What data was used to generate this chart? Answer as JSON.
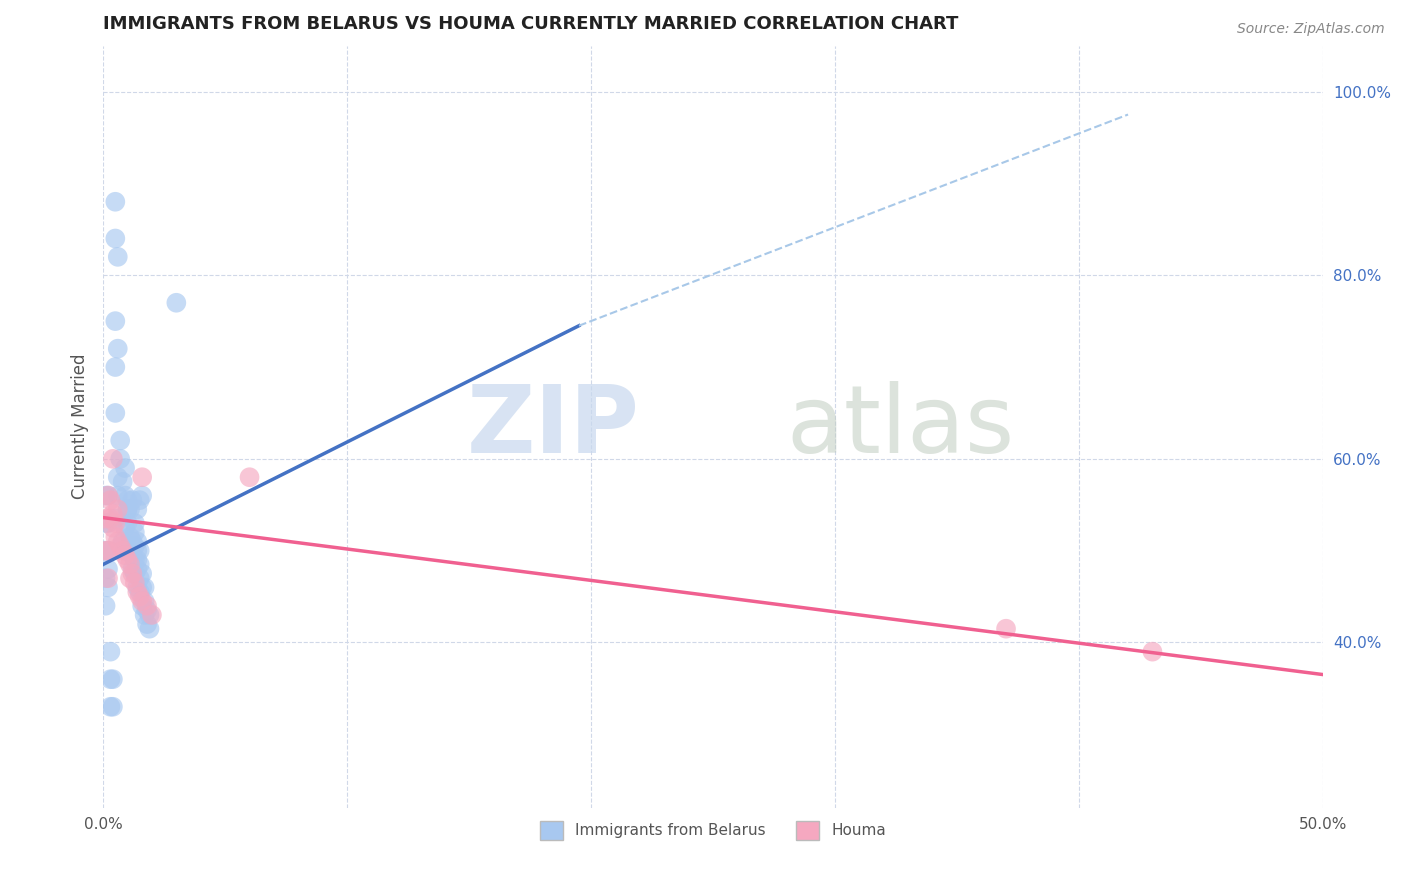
{
  "title": "IMMIGRANTS FROM BELARUS VS HOUMA CURRENTLY MARRIED CORRELATION CHART",
  "source_text": "Source: ZipAtlas.com",
  "ylabel": "Currently Married",
  "xlim": [
    0.0,
    0.5
  ],
  "ylim": [
    0.22,
    1.05
  ],
  "yticks_right": [
    0.4,
    0.6,
    0.8,
    1.0
  ],
  "yticklabels_right": [
    "40.0%",
    "60.0%",
    "80.0%",
    "100.0%"
  ],
  "color_blue": "#a8c8f0",
  "color_pink": "#f5a8c0",
  "line_blue": "#4472c4",
  "line_pink": "#f06090",
  "trend_dash_color": "#a8c8e8",
  "background_color": "#ffffff",
  "grid_color": "#d0d8e8",
  "blue_scatter": [
    [
      0.005,
      0.535
    ],
    [
      0.006,
      0.56
    ],
    [
      0.008,
      0.51
    ],
    [
      0.009,
      0.5
    ],
    [
      0.009,
      0.525
    ],
    [
      0.01,
      0.545
    ],
    [
      0.01,
      0.555
    ],
    [
      0.011,
      0.5
    ],
    [
      0.011,
      0.515
    ],
    [
      0.012,
      0.48
    ],
    [
      0.012,
      0.495
    ],
    [
      0.012,
      0.51
    ],
    [
      0.013,
      0.475
    ],
    [
      0.013,
      0.49
    ],
    [
      0.013,
      0.505
    ],
    [
      0.013,
      0.52
    ],
    [
      0.014,
      0.46
    ],
    [
      0.014,
      0.48
    ],
    [
      0.014,
      0.49
    ],
    [
      0.014,
      0.5
    ],
    [
      0.014,
      0.51
    ],
    [
      0.015,
      0.455
    ],
    [
      0.015,
      0.47
    ],
    [
      0.015,
      0.485
    ],
    [
      0.015,
      0.5
    ],
    [
      0.016,
      0.44
    ],
    [
      0.016,
      0.46
    ],
    [
      0.016,
      0.475
    ],
    [
      0.017,
      0.43
    ],
    [
      0.017,
      0.445
    ],
    [
      0.017,
      0.46
    ],
    [
      0.018,
      0.42
    ],
    [
      0.018,
      0.435
    ],
    [
      0.019,
      0.415
    ],
    [
      0.019,
      0.43
    ],
    [
      0.006,
      0.58
    ],
    [
      0.007,
      0.6
    ],
    [
      0.007,
      0.62
    ],
    [
      0.008,
      0.575
    ],
    [
      0.009,
      0.59
    ],
    [
      0.009,
      0.56
    ],
    [
      0.01,
      0.545
    ],
    [
      0.01,
      0.53
    ],
    [
      0.011,
      0.545
    ],
    [
      0.012,
      0.555
    ],
    [
      0.013,
      0.53
    ],
    [
      0.014,
      0.545
    ],
    [
      0.015,
      0.555
    ],
    [
      0.016,
      0.56
    ],
    [
      0.005,
      0.65
    ],
    [
      0.005,
      0.7
    ],
    [
      0.005,
      0.75
    ],
    [
      0.006,
      0.72
    ],
    [
      0.005,
      0.84
    ],
    [
      0.005,
      0.88
    ],
    [
      0.006,
      0.82
    ],
    [
      0.03,
      0.77
    ],
    [
      0.003,
      0.39
    ],
    [
      0.003,
      0.36
    ],
    [
      0.003,
      0.33
    ],
    [
      0.004,
      0.36
    ],
    [
      0.004,
      0.33
    ],
    [
      0.002,
      0.5
    ],
    [
      0.002,
      0.48
    ],
    [
      0.002,
      0.46
    ],
    [
      0.001,
      0.44
    ],
    [
      0.001,
      0.47
    ],
    [
      0.001,
      0.5
    ],
    [
      0.001,
      0.53
    ],
    [
      0.001,
      0.56
    ],
    [
      0.002,
      0.53
    ],
    [
      0.002,
      0.56
    ]
  ],
  "pink_scatter": [
    [
      0.003,
      0.535
    ],
    [
      0.004,
      0.525
    ],
    [
      0.005,
      0.515
    ],
    [
      0.006,
      0.51
    ],
    [
      0.007,
      0.505
    ],
    [
      0.008,
      0.5
    ],
    [
      0.009,
      0.495
    ],
    [
      0.01,
      0.49
    ],
    [
      0.011,
      0.485
    ],
    [
      0.011,
      0.47
    ],
    [
      0.012,
      0.475
    ],
    [
      0.013,
      0.465
    ],
    [
      0.016,
      0.58
    ],
    [
      0.014,
      0.455
    ],
    [
      0.015,
      0.45
    ],
    [
      0.016,
      0.445
    ],
    [
      0.018,
      0.44
    ],
    [
      0.02,
      0.43
    ],
    [
      0.002,
      0.56
    ],
    [
      0.002,
      0.5
    ],
    [
      0.003,
      0.555
    ],
    [
      0.004,
      0.54
    ],
    [
      0.005,
      0.53
    ],
    [
      0.006,
      0.545
    ],
    [
      0.004,
      0.6
    ],
    [
      0.001,
      0.535
    ],
    [
      0.001,
      0.5
    ],
    [
      0.002,
      0.47
    ],
    [
      0.37,
      0.415
    ],
    [
      0.43,
      0.39
    ],
    [
      0.06,
      0.58
    ]
  ],
  "blue_line_x": [
    0.0,
    0.195
  ],
  "blue_line_y": [
    0.485,
    0.745
  ],
  "pink_line_x": [
    0.0,
    0.5
  ],
  "pink_line_y": [
    0.536,
    0.365
  ],
  "dash_line_x": [
    0.195,
    0.42
  ],
  "dash_line_y": [
    0.745,
    0.975
  ]
}
